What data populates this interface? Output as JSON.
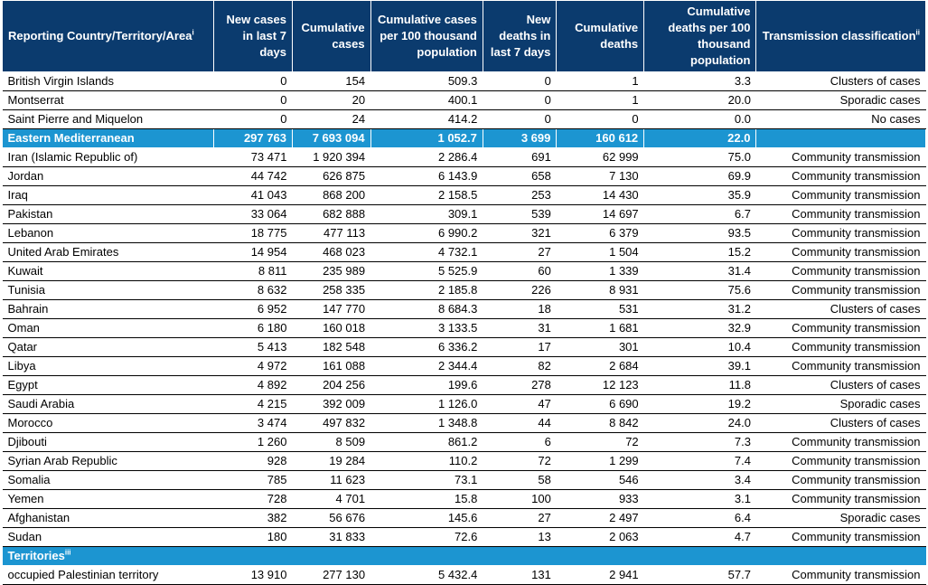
{
  "header": {
    "country": "Reporting Country/Territory/Area",
    "country_sup": "i",
    "new_cases": "New cases in last 7 days",
    "cumulative_cases": "Cumulative cases",
    "cum_cases_per_100k": "Cumulative cases per 100 thousand population",
    "new_deaths": "New deaths in last 7 days",
    "cumulative_deaths": "Cumulative deaths",
    "cum_deaths_per_100k": "Cumulative deaths per 100 thousand population",
    "transmission": "Transmission classification",
    "transmission_sup": "ii"
  },
  "top_rows": [
    {
      "name": "British Virgin Islands",
      "new_cases": "0",
      "cum_cases": "154",
      "cases_100k": "509.3",
      "new_deaths": "0",
      "cum_deaths": "1",
      "deaths_100k": "3.3",
      "transmission": "Clusters of cases"
    },
    {
      "name": "Montserrat",
      "new_cases": "0",
      "cum_cases": "20",
      "cases_100k": "400.1",
      "new_deaths": "0",
      "cum_deaths": "1",
      "deaths_100k": "20.0",
      "transmission": "Sporadic cases"
    },
    {
      "name": "Saint Pierre and Miquelon",
      "new_cases": "0",
      "cum_cases": "24",
      "cases_100k": "414.2",
      "new_deaths": "0",
      "cum_deaths": "0",
      "deaths_100k": "0.0",
      "transmission": "No cases"
    }
  ],
  "region": {
    "name": "Eastern Mediterranean",
    "new_cases": "297 763",
    "cum_cases": "7 693 094",
    "cases_100k": "1 052.7",
    "new_deaths": "3 699",
    "cum_deaths": "160 612",
    "deaths_100k": "22.0",
    "transmission": ""
  },
  "region_rows": [
    {
      "name": "Iran (Islamic Republic of)",
      "new_cases": "73 471",
      "cum_cases": "1 920 394",
      "cases_100k": "2 286.4",
      "new_deaths": "691",
      "cum_deaths": "62 999",
      "deaths_100k": "75.0",
      "transmission": "Community transmission"
    },
    {
      "name": "Jordan",
      "new_cases": "44 742",
      "cum_cases": "626 875",
      "cases_100k": "6 143.9",
      "new_deaths": "658",
      "cum_deaths": "7 130",
      "deaths_100k": "69.9",
      "transmission": "Community transmission"
    },
    {
      "name": "Iraq",
      "new_cases": "41 043",
      "cum_cases": "868 200",
      "cases_100k": "2 158.5",
      "new_deaths": "253",
      "cum_deaths": "14 430",
      "deaths_100k": "35.9",
      "transmission": "Community transmission"
    },
    {
      "name": "Pakistan",
      "new_cases": "33 064",
      "cum_cases": "682 888",
      "cases_100k": "309.1",
      "new_deaths": "539",
      "cum_deaths": "14 697",
      "deaths_100k": "6.7",
      "transmission": "Community transmission"
    },
    {
      "name": "Lebanon",
      "new_cases": "18 775",
      "cum_cases": "477 113",
      "cases_100k": "6 990.2",
      "new_deaths": "321",
      "cum_deaths": "6 379",
      "deaths_100k": "93.5",
      "transmission": "Community transmission"
    },
    {
      "name": "United Arab Emirates",
      "new_cases": "14 954",
      "cum_cases": "468 023",
      "cases_100k": "4 732.1",
      "new_deaths": "27",
      "cum_deaths": "1 504",
      "deaths_100k": "15.2",
      "transmission": "Community transmission"
    },
    {
      "name": "Kuwait",
      "new_cases": "8 811",
      "cum_cases": "235 989",
      "cases_100k": "5 525.9",
      "new_deaths": "60",
      "cum_deaths": "1 339",
      "deaths_100k": "31.4",
      "transmission": "Community transmission"
    },
    {
      "name": "Tunisia",
      "new_cases": "8 632",
      "cum_cases": "258 335",
      "cases_100k": "2 185.8",
      "new_deaths": "226",
      "cum_deaths": "8 931",
      "deaths_100k": "75.6",
      "transmission": "Community transmission"
    },
    {
      "name": "Bahrain",
      "new_cases": "6 952",
      "cum_cases": "147 770",
      "cases_100k": "8 684.3",
      "new_deaths": "18",
      "cum_deaths": "531",
      "deaths_100k": "31.2",
      "transmission": "Clusters of cases"
    },
    {
      "name": "Oman",
      "new_cases": "6 180",
      "cum_cases": "160 018",
      "cases_100k": "3 133.5",
      "new_deaths": "31",
      "cum_deaths": "1 681",
      "deaths_100k": "32.9",
      "transmission": "Community transmission"
    },
    {
      "name": "Qatar",
      "new_cases": "5 413",
      "cum_cases": "182 548",
      "cases_100k": "6 336.2",
      "new_deaths": "17",
      "cum_deaths": "301",
      "deaths_100k": "10.4",
      "transmission": "Community transmission"
    },
    {
      "name": "Libya",
      "new_cases": "4 972",
      "cum_cases": "161 088",
      "cases_100k": "2 344.4",
      "new_deaths": "82",
      "cum_deaths": "2 684",
      "deaths_100k": "39.1",
      "transmission": "Community transmission"
    },
    {
      "name": "Egypt",
      "new_cases": "4 892",
      "cum_cases": "204 256",
      "cases_100k": "199.6",
      "new_deaths": "278",
      "cum_deaths": "12 123",
      "deaths_100k": "11.8",
      "transmission": "Clusters of cases"
    },
    {
      "name": "Saudi Arabia",
      "new_cases": "4 215",
      "cum_cases": "392 009",
      "cases_100k": "1 126.0",
      "new_deaths": "47",
      "cum_deaths": "6 690",
      "deaths_100k": "19.2",
      "transmission": "Sporadic cases"
    },
    {
      "name": "Morocco",
      "new_cases": "3 474",
      "cum_cases": "497 832",
      "cases_100k": "1 348.8",
      "new_deaths": "44",
      "cum_deaths": "8 842",
      "deaths_100k": "24.0",
      "transmission": "Clusters of cases"
    },
    {
      "name": "Djibouti",
      "new_cases": "1 260",
      "cum_cases": "8 509",
      "cases_100k": "861.2",
      "new_deaths": "6",
      "cum_deaths": "72",
      "deaths_100k": "7.3",
      "transmission": "Community transmission"
    },
    {
      "name": "Syrian Arab Republic",
      "new_cases": "928",
      "cum_cases": "19 284",
      "cases_100k": "110.2",
      "new_deaths": "72",
      "cum_deaths": "1 299",
      "deaths_100k": "7.4",
      "transmission": "Community transmission"
    },
    {
      "name": "Somalia",
      "new_cases": "785",
      "cum_cases": "11 623",
      "cases_100k": "73.1",
      "new_deaths": "58",
      "cum_deaths": "546",
      "deaths_100k": "3.4",
      "transmission": "Community transmission"
    },
    {
      "name": "Yemen",
      "new_cases": "728",
      "cum_cases": "4 701",
      "cases_100k": "15.8",
      "new_deaths": "100",
      "cum_deaths": "933",
      "deaths_100k": "3.1",
      "transmission": "Community transmission"
    },
    {
      "name": "Afghanistan",
      "new_cases": "382",
      "cum_cases": "56 676",
      "cases_100k": "145.6",
      "new_deaths": "27",
      "cum_deaths": "2 497",
      "deaths_100k": "6.4",
      "transmission": "Sporadic cases"
    },
    {
      "name": "Sudan",
      "new_cases": "180",
      "cum_cases": "31 833",
      "cases_100k": "72.6",
      "new_deaths": "13",
      "cum_deaths": "2 063",
      "deaths_100k": "4.7",
      "transmission": "Community transmission"
    }
  ],
  "territories": {
    "label": "Territories",
    "label_sup": "iii",
    "rows": [
      {
        "name": "occupied Palestinian territory",
        "new_cases": "13 910",
        "cum_cases": "277 130",
        "cases_100k": "5 432.4",
        "new_deaths": "131",
        "cum_deaths": "2 941",
        "deaths_100k": "57.7",
        "transmission": "Community transmission"
      }
    ]
  }
}
